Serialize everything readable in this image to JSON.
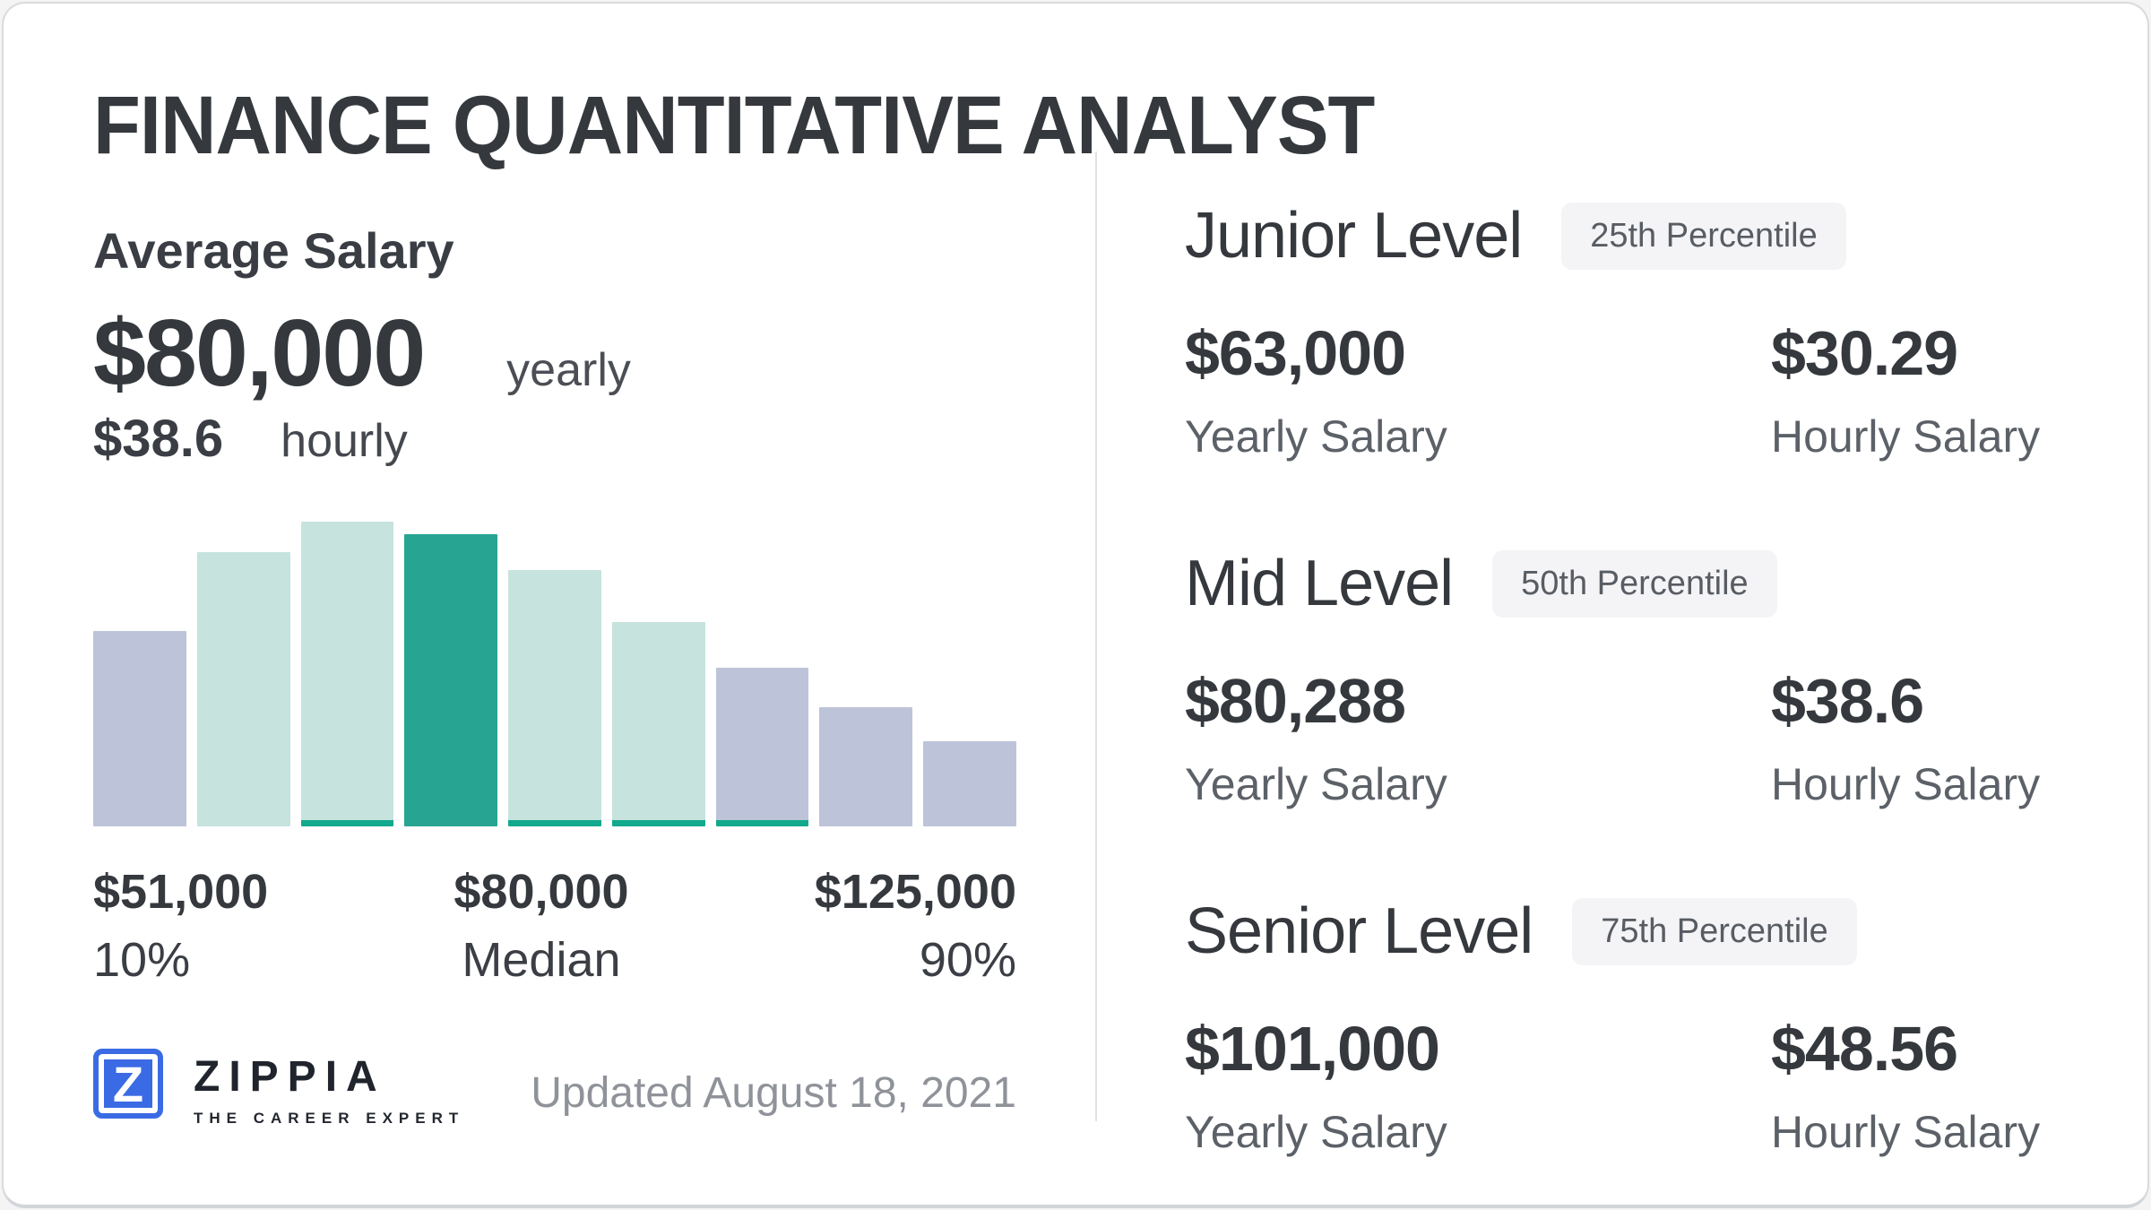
{
  "page": {
    "title": "FINANCE QUANTITATIVE ANALYST",
    "updated": "Updated August 18, 2021"
  },
  "average": {
    "label": "Average Salary",
    "yearly_value": "$80,000",
    "yearly_unit": "yearly",
    "hourly_value": "$38.6",
    "hourly_unit": "hourly"
  },
  "chart_data": {
    "type": "bar",
    "title": "Salary distribution histogram",
    "x_range": [
      "$51,000",
      "$125,000"
    ],
    "percentile_markers": [
      {
        "value": "$51,000",
        "label": "10%",
        "align": "left"
      },
      {
        "value": "$80,000",
        "label": "Median",
        "align": "center"
      },
      {
        "value": "$125,000",
        "label": "90%",
        "align": "right"
      }
    ],
    "bars": [
      {
        "height_pct": 64,
        "color": "lavender",
        "accent_strip": false
      },
      {
        "height_pct": 90,
        "color": "teal_light",
        "accent_strip": false
      },
      {
        "height_pct": 100,
        "color": "teal_light",
        "accent_strip": true
      },
      {
        "height_pct": 96,
        "color": "teal_dark",
        "accent_strip": false
      },
      {
        "height_pct": 84,
        "color": "teal_light",
        "accent_strip": true
      },
      {
        "height_pct": 67,
        "color": "teal_light",
        "accent_strip": true
      },
      {
        "height_pct": 52,
        "color": "lavender",
        "accent_strip": true
      },
      {
        "height_pct": 39,
        "color": "lavender",
        "accent_strip": false
      },
      {
        "height_pct": 28,
        "color": "lavender",
        "accent_strip": false
      }
    ],
    "palette": {
      "lavender": "#bdc3d8",
      "teal_light": "#c6e3de",
      "teal_dark": "#27a492",
      "accent_strip": "#12a98c"
    },
    "legend": false,
    "grid": false
  },
  "logo": {
    "glyph": "Z",
    "brand": "ZIPPIA",
    "tagline": "THE CAREER EXPERT",
    "brand_color": "#3b6be4"
  },
  "levels": [
    {
      "name": "Junior Level",
      "badge": "25th Percentile",
      "yearly_value": "$63,000",
      "yearly_label": "Yearly Salary",
      "hourly_value": "$30.29",
      "hourly_label": "Hourly Salary"
    },
    {
      "name": "Mid Level",
      "badge": "50th Percentile",
      "yearly_value": "$80,288",
      "yearly_label": "Yearly Salary",
      "hourly_value": "$38.6",
      "hourly_label": "Hourly Salary"
    },
    {
      "name": "Senior Level",
      "badge": "75th Percentile",
      "yearly_value": "$101,000",
      "yearly_label": "Yearly Salary",
      "hourly_value": "$48.56",
      "hourly_label": "Hourly Salary"
    }
  ]
}
